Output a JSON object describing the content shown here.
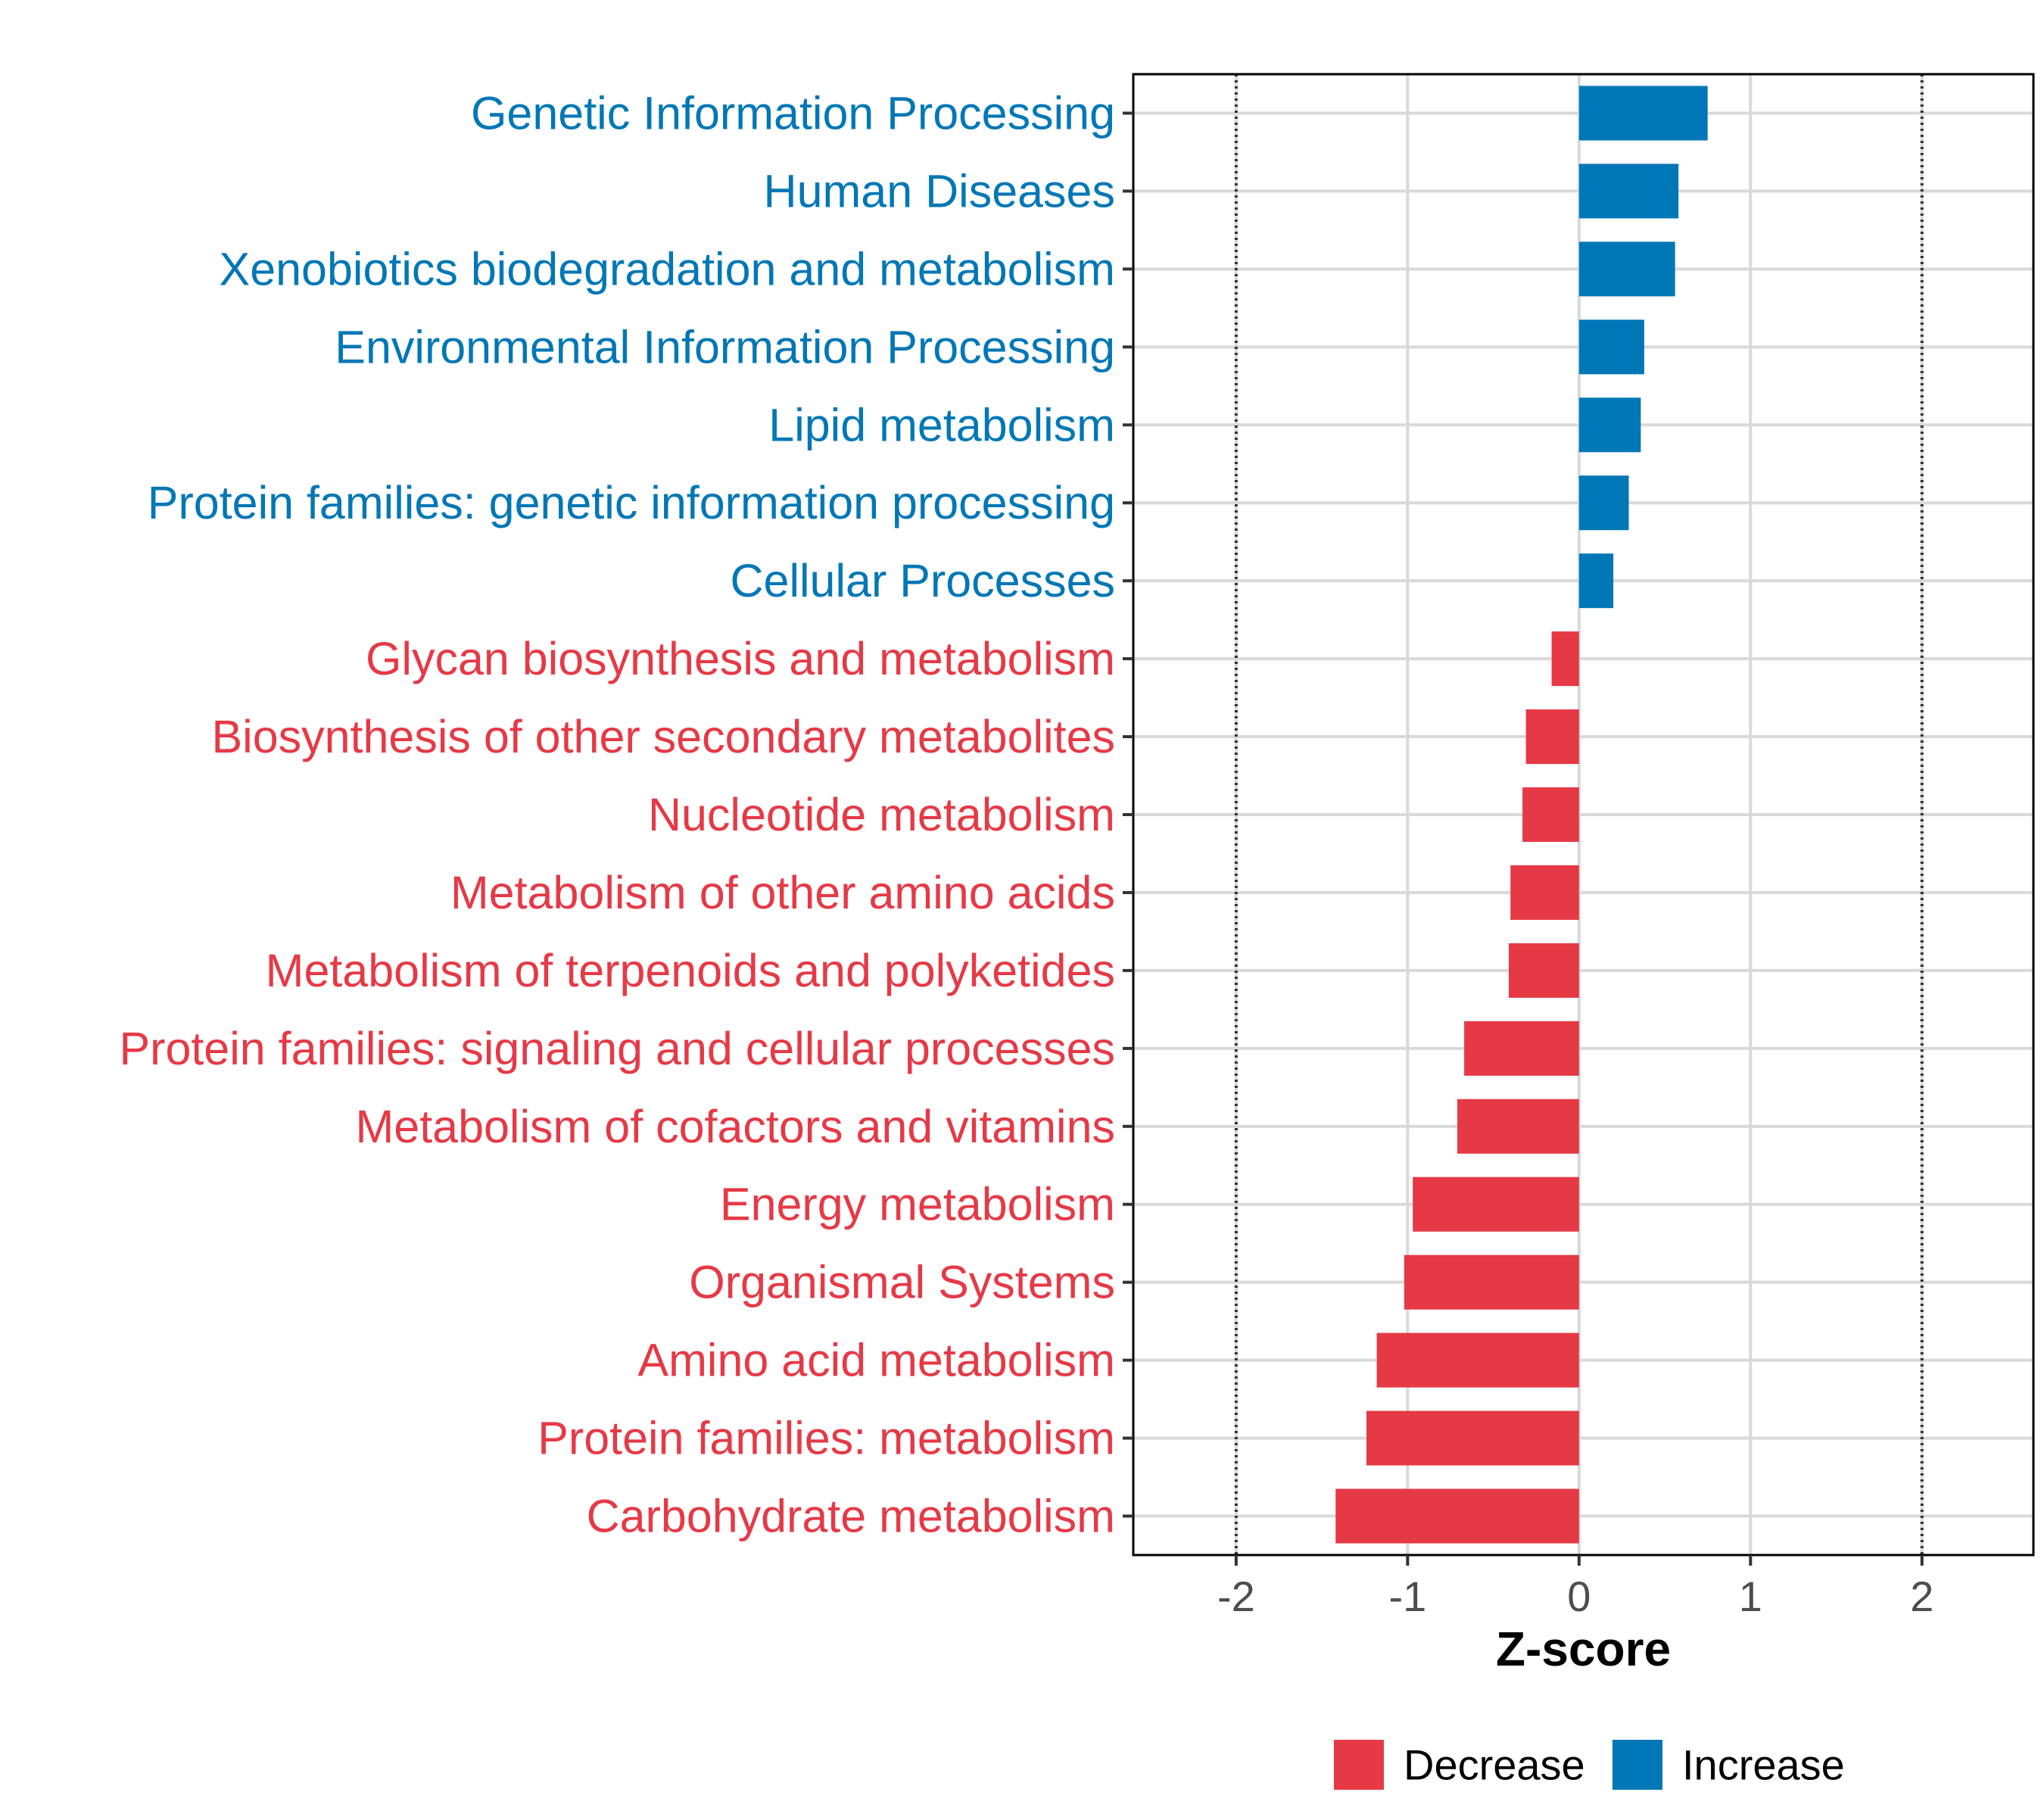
{
  "chart_data": {
    "type": "bar",
    "orientation": "horizontal",
    "title": "",
    "xlabel": "Z-score",
    "ylabel": "",
    "xlim": [
      -2.6,
      2.65
    ],
    "xticks": [
      -2,
      -1,
      0,
      1,
      2
    ],
    "xtick_labels": [
      "-2",
      "-1",
      "0",
      "1",
      "2"
    ],
    "reference_lines": [
      -2,
      2
    ],
    "grid": true,
    "colors": {
      "Decrease": "#e63946",
      "Increase": "#0077b6"
    },
    "categories": [
      "Genetic Information Processing",
      "Human Diseases",
      "Xenobiotics biodegradation and metabolism",
      "Environmental Information Processing",
      "Lipid metabolism",
      "Protein families: genetic information processing",
      "Cellular Processes",
      "Glycan biosynthesis and metabolism",
      "Biosynthesis of other secondary metabolites",
      "Nucleotide metabolism",
      "Metabolism of other amino acids",
      "Metabolism of terpenoids and polyketides",
      "Protein families: signaling and cellular processes",
      "Metabolism of cofactors and vitamins",
      "Energy metabolism",
      "Organismal Systems",
      "Amino acid metabolism",
      "Protein families: metabolism",
      "Carbohydrate metabolism"
    ],
    "values": [
      0.75,
      0.58,
      0.56,
      0.38,
      0.36,
      0.29,
      0.2,
      -0.16,
      -0.31,
      -0.33,
      -0.4,
      -0.41,
      -0.67,
      -0.71,
      -0.97,
      -1.02,
      -1.18,
      -1.24,
      -1.42
    ],
    "groups": [
      "Increase",
      "Increase",
      "Increase",
      "Increase",
      "Increase",
      "Increase",
      "Increase",
      "Decrease",
      "Decrease",
      "Decrease",
      "Decrease",
      "Decrease",
      "Decrease",
      "Decrease",
      "Decrease",
      "Decrease",
      "Decrease",
      "Decrease",
      "Decrease"
    ],
    "legend": {
      "position": "bottom",
      "entries": [
        {
          "label": "Decrease",
          "group": "Decrease"
        },
        {
          "label": "Increase",
          "group": "Increase"
        }
      ]
    }
  }
}
